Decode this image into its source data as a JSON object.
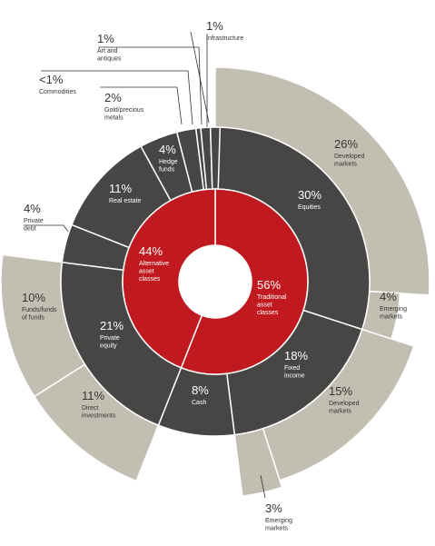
{
  "chart_data": {
    "type": "sunburst",
    "title": "",
    "colors": {
      "inner": "#c0191f",
      "middle": "#474644",
      "outer": "#c2bfb2",
      "separator": "#ffffff",
      "leader": "#333333",
      "text_dark": "#333333",
      "text_light": "#ffffff"
    },
    "inner": [
      {
        "name": "Traditional asset classes",
        "value": 56,
        "pct_label": "56%",
        "lines": [
          "Traditional",
          "asset",
          "classes"
        ]
      },
      {
        "name": "Alternative asset classes",
        "value": 44,
        "pct_label": "44%",
        "lines": [
          "Alternative",
          "asset",
          "classes"
        ]
      }
    ],
    "middle": [
      {
        "name": "Equities",
        "value": 30,
        "parent": "Traditional asset classes",
        "pct_label": "30%",
        "lines": [
          "Equities"
        ]
      },
      {
        "name": "Fixed income",
        "value": 18,
        "parent": "Traditional asset classes",
        "pct_label": "18%",
        "lines": [
          "Fixed",
          "income"
        ]
      },
      {
        "name": "Cash",
        "value": 8,
        "parent": "Traditional asset classes",
        "pct_label": "8%",
        "lines": [
          "Cash"
        ]
      },
      {
        "name": "Private equity",
        "value": 21,
        "parent": "Alternative asset classes",
        "pct_label": "21%",
        "lines": [
          "Private",
          "equity"
        ]
      },
      {
        "name": "Private debt",
        "value": 4,
        "parent": "Alternative asset classes",
        "pct_label": "4%",
        "lines": [
          "Private",
          "debt"
        ]
      },
      {
        "name": "Real estate",
        "value": 11,
        "parent": "Alternative asset classes",
        "pct_label": "11%",
        "lines": [
          "Real estate"
        ]
      },
      {
        "name": "Hedge funds",
        "value": 4,
        "parent": "Alternative asset classes",
        "pct_label": "4%",
        "lines": [
          "Hedge",
          "funds"
        ]
      },
      {
        "name": "Gold/precious metals",
        "value": 2,
        "parent": "Alternative asset classes",
        "pct_label": "2%",
        "lines": [
          "Gold/precious",
          "metals"
        ]
      },
      {
        "name": "Commodities",
        "value": 0.5,
        "parent": "Alternative asset classes",
        "pct_label": "<1%",
        "lines": [
          "Commodities"
        ]
      },
      {
        "name": "Art and antiques",
        "value": 1,
        "parent": "Alternative asset classes",
        "pct_label": "1%",
        "lines": [
          "Art and",
          "antiques"
        ]
      },
      {
        "name": "Infrastructure",
        "value": 1,
        "parent": "Alternative asset classes",
        "pct_label": "1%",
        "lines": [
          "Infrastructure"
        ]
      }
    ],
    "outer": [
      {
        "name": "Developed markets",
        "value": 26,
        "parent": "Equities",
        "pct_label": "26%",
        "lines": [
          "Developed",
          "markets"
        ]
      },
      {
        "name": "Emerging markets",
        "value": 4,
        "parent": "Equities",
        "pct_label": "4%",
        "lines": [
          "Emerging",
          "markets"
        ]
      },
      {
        "name": "Developed markets",
        "value": 15,
        "parent": "Fixed income",
        "pct_label": "15%",
        "lines": [
          "Developed",
          "markets"
        ]
      },
      {
        "name": "Emerging markets",
        "value": 3,
        "parent": "Fixed income",
        "pct_label": "3%",
        "lines": [
          "Emerging",
          "markets"
        ]
      },
      {
        "name": "Funds/funds of funds",
        "value": 10,
        "parent": "Private equity",
        "pct_label": "10%",
        "lines": [
          "Funds/funds",
          "of funds"
        ]
      },
      {
        "name": "Direct investments",
        "value": 11,
        "parent": "Private equity",
        "pct_label": "11%",
        "lines": [
          "Direct",
          "investments"
        ]
      }
    ]
  }
}
